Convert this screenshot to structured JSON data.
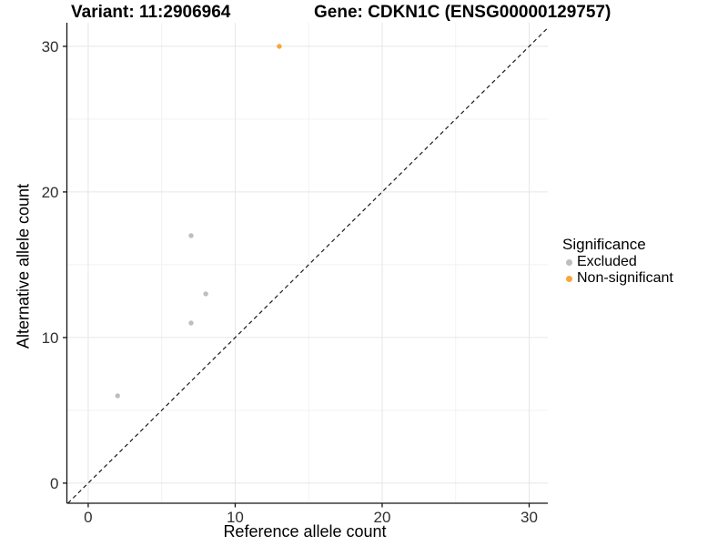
{
  "chart_data": {
    "type": "scatter",
    "title_left": "Variant: 11:2906964",
    "title_right": "Gene: CDKN1C (ENSG00000129757)",
    "xlabel": "Reference allele count",
    "ylabel": "Alternative allele count",
    "xlim": [
      -1.45,
      31.27
    ],
    "ylim": [
      -1.38,
      31.62
    ],
    "xticks": [
      0,
      10,
      20,
      30
    ],
    "yticks": [
      0,
      10,
      20,
      30
    ],
    "xminor": [
      5,
      15,
      25
    ],
    "yminor": [
      5,
      15,
      25
    ],
    "identity_line": true,
    "grid": true,
    "series": [
      {
        "name": "Excluded",
        "color": "#BEBEBE",
        "points": [
          [
            2,
            6
          ],
          [
            7,
            11
          ],
          [
            7,
            17
          ],
          [
            8,
            13
          ]
        ]
      },
      {
        "name": "Non-significant",
        "color": "#F7A63A",
        "points": [
          [
            13,
            30
          ]
        ]
      }
    ],
    "legend": {
      "title": "Significance",
      "position": "right"
    },
    "colors": {
      "grid_major": "#e6e6e6",
      "grid_minor": "#f2f2f2",
      "axis_line": "#141414",
      "tick_text": "#303030",
      "identity_line": "#1a1a1a"
    }
  }
}
